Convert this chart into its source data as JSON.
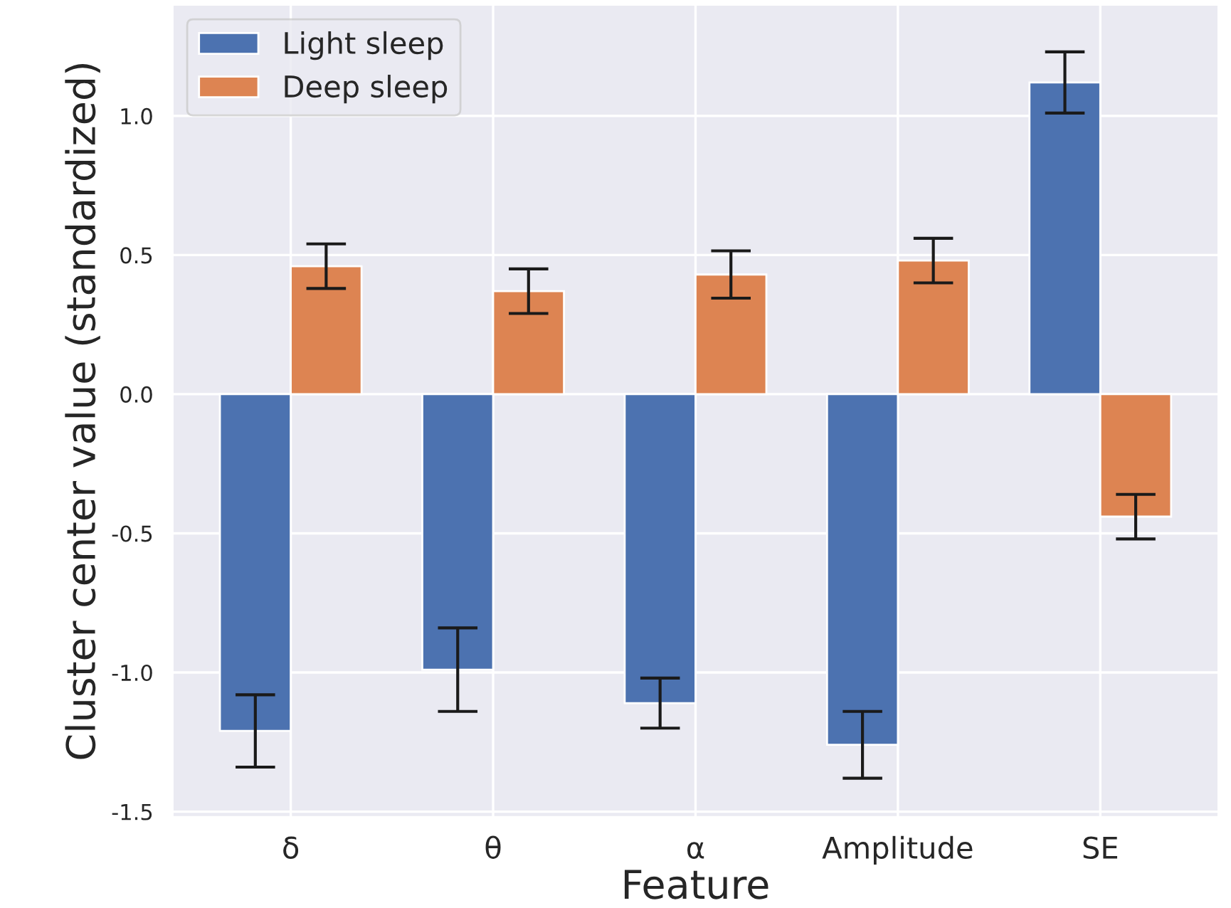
{
  "chart_data": {
    "type": "bar",
    "xlabel": "Feature",
    "ylabel": "Cluster center value (standardized)",
    "categories": [
      "δ",
      "θ",
      "α",
      "Amplitude",
      "SE"
    ],
    "series": [
      {
        "name": "Light sleep",
        "color": "#4c72b0",
        "values": [
          -1.21,
          -0.99,
          -1.11,
          -1.26,
          1.12
        ],
        "errors": [
          0.13,
          0.15,
          0.09,
          0.12,
          0.11
        ]
      },
      {
        "name": "Deep sleep",
        "color": "#dd8452",
        "values": [
          0.46,
          0.37,
          0.43,
          0.48,
          -0.44
        ],
        "errors": [
          0.08,
          0.08,
          0.085,
          0.08,
          0.08
        ]
      }
    ],
    "ylim": [
      -1.52,
      1.4
    ],
    "yticks": [
      -1.5,
      {
        "value": -1,
        "label": "-1.0"
      },
      -0.5,
      {
        "value": 0,
        "label": "0.0"
      },
      0.5,
      {
        "value": 1,
        "label": "1.0"
      }
    ],
    "grid": true,
    "legend": "top left"
  }
}
